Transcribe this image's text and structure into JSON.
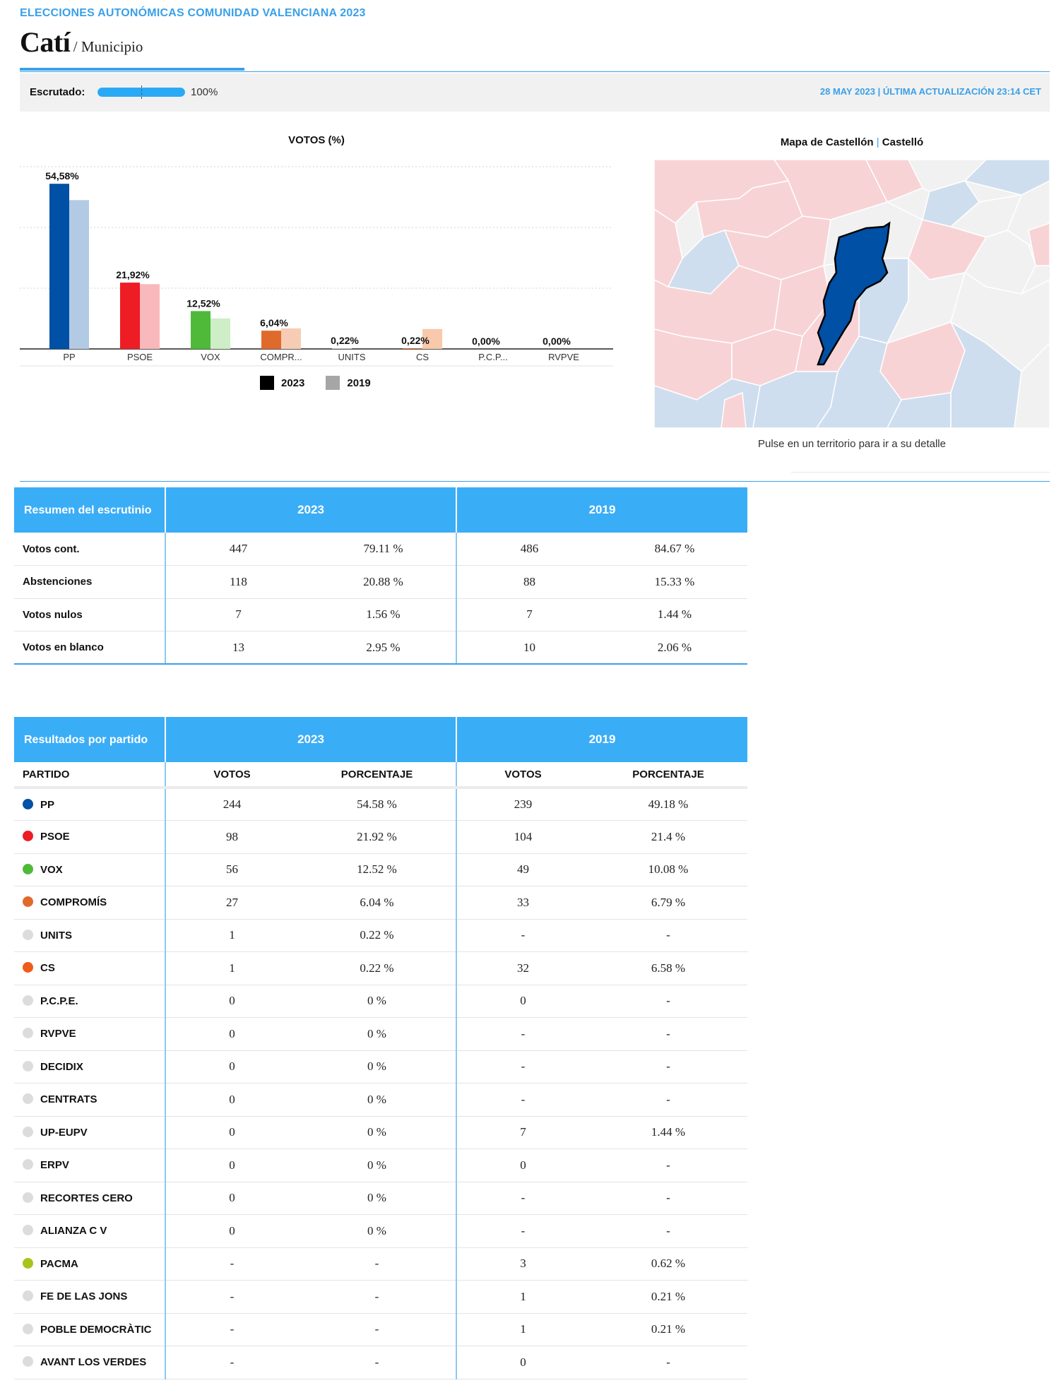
{
  "header": {
    "kicker": "ELECCIONES AUTONÓMICAS COMUNIDAD VALENCIANA 2023",
    "title": "Catí",
    "subtitle": "/ Municipio"
  },
  "status": {
    "label": "Escrutado:",
    "progress": 1.0,
    "percent_text": "100%",
    "date": "28 MAY 2023",
    "separator": "|",
    "update": "ÚLTIMA ACTUALIZACIÓN 23:14 CET"
  },
  "chart_data": {
    "type": "bar",
    "title": "VOTOS (%)",
    "categories": [
      "PP",
      "PSOE",
      "VOX",
      "COMPR...",
      "UNITS",
      "CS",
      "P.C.P...",
      "RVPVE"
    ],
    "series": [
      {
        "name": "2023",
        "values": [
          54.58,
          21.92,
          12.52,
          6.04,
          0.22,
          0.22,
          0.0,
          0.0
        ]
      },
      {
        "name": "2019",
        "values": [
          49.18,
          21.4,
          10.08,
          6.79,
          0,
          6.58,
          0,
          0
        ]
      }
    ],
    "data_labels": [
      "54,58%",
      "21,92%",
      "12,52%",
      "6,04%",
      "0,22%",
      "0,22%",
      "0,00%",
      "0,00%"
    ],
    "colors_2023": [
      "#0050a5",
      "#ee1c25",
      "#4fba3a",
      "#e06a2c",
      "#cccccc",
      "#ef6b28",
      "#cccccc",
      "#cccccc"
    ],
    "colors_2019": [
      "#b3cae4",
      "#f9b8bb",
      "#cdeec6",
      "#f6cdb4",
      "#e8e8e8",
      "#f9c9ac",
      "#e8e8e8",
      "#e8e8e8"
    ],
    "ylim": [
      0,
      60
    ],
    "grid": true,
    "legend_position": "bottom"
  },
  "legend": {
    "items": [
      {
        "label": "2023",
        "color": "#000000"
      },
      {
        "label": "2019",
        "color": "#a6a6a6"
      }
    ]
  },
  "map": {
    "title": "Mapa de Castellón",
    "separator": "|",
    "subtitle": "Castelló",
    "caption": "Pulse en un territorio para ir a su detalle"
  },
  "summary": {
    "header": "Resumen del escrutinio",
    "years": [
      "2023",
      "2019"
    ],
    "rows": [
      {
        "label": "Votos cont.",
        "v2023": "447",
        "p2023": "79.11 %",
        "v2019": "486",
        "p2019": "84.67 %"
      },
      {
        "label": "Abstenciones",
        "v2023": "118",
        "p2023": "20.88 %",
        "v2019": "88",
        "p2019": "15.33 %"
      },
      {
        "label": "Votos nulos",
        "v2023": "7",
        "p2023": "1.56 %",
        "v2019": "7",
        "p2019": "1.44 %"
      },
      {
        "label": "Votos en blanco",
        "v2023": "13",
        "p2023": "2.95 %",
        "v2019": "10",
        "p2019": "2.06 %"
      }
    ]
  },
  "results": {
    "header": "Resultados por partido",
    "years": [
      "2023",
      "2019"
    ],
    "columns": {
      "party": "PARTIDO",
      "votes": "VOTOS",
      "percent": "PORCENTAJE"
    },
    "rows": [
      {
        "party": "PP",
        "color": "#0050a5",
        "v2023": "244",
        "p2023": "54.58 %",
        "v2019": "239",
        "p2019": "49.18 %"
      },
      {
        "party": "PSOE",
        "color": "#ee1c25",
        "v2023": "98",
        "p2023": "21.92 %",
        "v2019": "104",
        "p2019": "21.4 %"
      },
      {
        "party": "VOX",
        "color": "#4fba3a",
        "v2023": "56",
        "p2023": "12.52 %",
        "v2019": "49",
        "p2019": "10.08 %"
      },
      {
        "party": "COMPROMÍS",
        "color": "#e06a2c",
        "v2023": "27",
        "p2023": "6.04 %",
        "v2019": "33",
        "p2019": "6.79 %"
      },
      {
        "party": "UNITS",
        "color": "#dcdcdc",
        "v2023": "1",
        "p2023": "0.22 %",
        "v2019": "-",
        "p2019": "-"
      },
      {
        "party": "CS",
        "color": "#f05a1a",
        "v2023": "1",
        "p2023": "0.22 %",
        "v2019": "32",
        "p2019": "6.58 %"
      },
      {
        "party": "P.C.P.E.",
        "color": "#dcdcdc",
        "v2023": "0",
        "p2023": "0 %",
        "v2019": "0",
        "p2019": "-"
      },
      {
        "party": "RVPVE",
        "color": "#dcdcdc",
        "v2023": "0",
        "p2023": "0 %",
        "v2019": "-",
        "p2019": "-"
      },
      {
        "party": "DECIDIX",
        "color": "#dcdcdc",
        "v2023": "0",
        "p2023": "0 %",
        "v2019": "-",
        "p2019": "-"
      },
      {
        "party": "CENTRATS",
        "color": "#dcdcdc",
        "v2023": "0",
        "p2023": "0 %",
        "v2019": "-",
        "p2019": "-"
      },
      {
        "party": "UP-EUPV",
        "color": "#dcdcdc",
        "v2023": "0",
        "p2023": "0 %",
        "v2019": "7",
        "p2019": "1.44 %"
      },
      {
        "party": "ERPV",
        "color": "#dcdcdc",
        "v2023": "0",
        "p2023": "0 %",
        "v2019": "0",
        "p2019": "-"
      },
      {
        "party": "RECORTES CERO",
        "color": "#dcdcdc",
        "v2023": "0",
        "p2023": "0 %",
        "v2019": "-",
        "p2019": "-"
      },
      {
        "party": "ALIANZA C V",
        "color": "#dcdcdc",
        "v2023": "0",
        "p2023": "0 %",
        "v2019": "-",
        "p2019": "-"
      },
      {
        "party": "PACMA",
        "color": "#a8c41a",
        "v2023": "-",
        "p2023": "-",
        "v2019": "3",
        "p2019": "0.62 %"
      },
      {
        "party": "FE DE LAS JONS",
        "color": "#dcdcdc",
        "v2023": "-",
        "p2023": "-",
        "v2019": "1",
        "p2019": "0.21 %"
      },
      {
        "party": "POBLE DEMOCRÀTIC",
        "color": "#dcdcdc",
        "v2023": "-",
        "p2023": "-",
        "v2019": "1",
        "p2019": "0.21 %"
      },
      {
        "party": "AVANT LOS VERDES",
        "color": "#dcdcdc",
        "v2023": "-",
        "p2023": "-",
        "v2019": "0",
        "p2019": "-"
      }
    ]
  }
}
